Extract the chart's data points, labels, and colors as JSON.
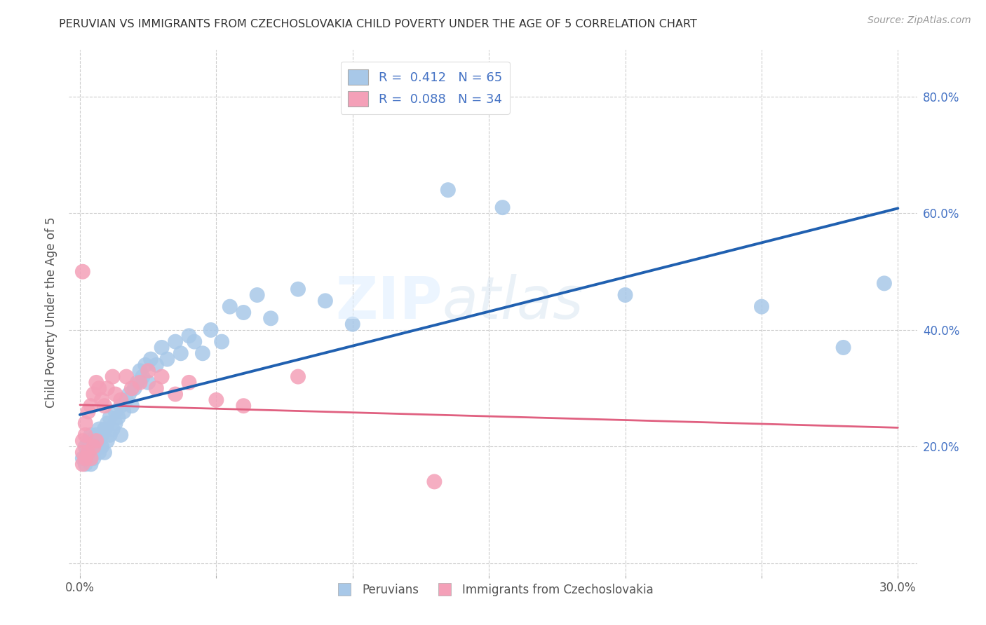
{
  "title": "PERUVIAN VS IMMIGRANTS FROM CZECHOSLOVAKIA CHILD POVERTY UNDER THE AGE OF 5 CORRELATION CHART",
  "source": "Source: ZipAtlas.com",
  "ylabel": "Child Poverty Under the Age of 5",
  "blue_color": "#a8c8e8",
  "pink_color": "#f4a0b8",
  "line_blue": "#2060b0",
  "line_pink": "#e06080",
  "watermark_zip": "ZIP",
  "watermark_atlas": "atlas",
  "legend_text_blue": "R =  0.412   N = 65",
  "legend_text_pink": "R =  0.088   N = 34",
  "legend_label_blue": "Peruvians",
  "legend_label_pink": "Immigrants from Czechoslovakia",
  "blue_scatter_x": [
    0.001,
    0.002,
    0.002,
    0.003,
    0.003,
    0.003,
    0.004,
    0.004,
    0.004,
    0.005,
    0.005,
    0.005,
    0.006,
    0.006,
    0.007,
    0.007,
    0.007,
    0.008,
    0.008,
    0.009,
    0.009,
    0.01,
    0.01,
    0.011,
    0.011,
    0.012,
    0.013,
    0.013,
    0.014,
    0.015,
    0.015,
    0.016,
    0.017,
    0.018,
    0.019,
    0.02,
    0.021,
    0.022,
    0.023,
    0.024,
    0.025,
    0.026,
    0.028,
    0.03,
    0.032,
    0.035,
    0.037,
    0.04,
    0.042,
    0.045,
    0.048,
    0.052,
    0.055,
    0.06,
    0.065,
    0.07,
    0.08,
    0.09,
    0.1,
    0.135,
    0.155,
    0.2,
    0.25,
    0.28,
    0.295
  ],
  "blue_scatter_y": [
    0.18,
    0.2,
    0.17,
    0.19,
    0.18,
    0.21,
    0.17,
    0.2,
    0.22,
    0.19,
    0.21,
    0.18,
    0.2,
    0.22,
    0.19,
    0.21,
    0.23,
    0.2,
    0.22,
    0.19,
    0.23,
    0.21,
    0.24,
    0.22,
    0.25,
    0.23,
    0.24,
    0.26,
    0.25,
    0.22,
    0.27,
    0.26,
    0.28,
    0.29,
    0.27,
    0.3,
    0.31,
    0.33,
    0.32,
    0.34,
    0.31,
    0.35,
    0.34,
    0.37,
    0.35,
    0.38,
    0.36,
    0.39,
    0.38,
    0.36,
    0.4,
    0.38,
    0.44,
    0.43,
    0.46,
    0.42,
    0.47,
    0.45,
    0.41,
    0.64,
    0.61,
    0.46,
    0.44,
    0.37,
    0.48
  ],
  "pink_scatter_x": [
    0.001,
    0.001,
    0.001,
    0.001,
    0.002,
    0.002,
    0.002,
    0.003,
    0.003,
    0.004,
    0.004,
    0.005,
    0.005,
    0.006,
    0.006,
    0.007,
    0.008,
    0.009,
    0.01,
    0.012,
    0.013,
    0.015,
    0.017,
    0.019,
    0.022,
    0.025,
    0.028,
    0.03,
    0.035,
    0.04,
    0.05,
    0.06,
    0.08,
    0.13
  ],
  "pink_scatter_y": [
    0.17,
    0.19,
    0.21,
    0.5,
    0.18,
    0.22,
    0.24,
    0.19,
    0.26,
    0.18,
    0.27,
    0.2,
    0.29,
    0.21,
    0.31,
    0.3,
    0.28,
    0.27,
    0.3,
    0.32,
    0.29,
    0.28,
    0.32,
    0.3,
    0.31,
    0.33,
    0.3,
    0.32,
    0.29,
    0.31,
    0.28,
    0.27,
    0.32,
    0.14
  ]
}
